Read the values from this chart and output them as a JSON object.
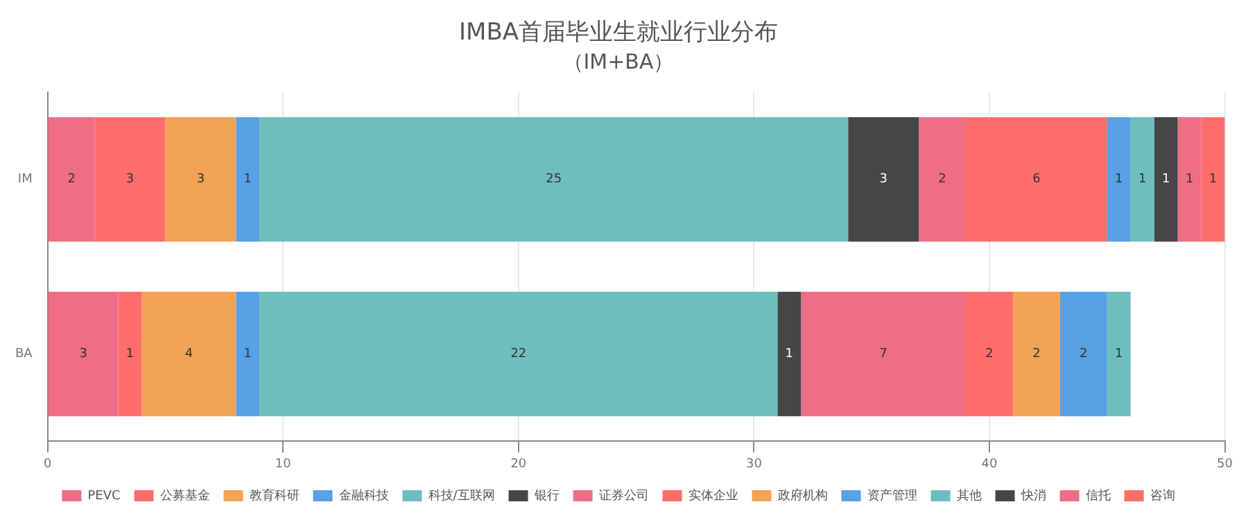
{
  "chart_data": {
    "type": "bar",
    "orientation": "horizontal",
    "stacked": true,
    "title": "IMBA首届毕业生就业行业分布",
    "subtitle": "（IM+BA）",
    "categories": [
      "IM",
      "BA"
    ],
    "series": [
      {
        "name": "PEVC",
        "color": "#ee6e85",
        "values": [
          2,
          3
        ]
      },
      {
        "name": "公募基金",
        "color": "#fd6e6a",
        "values": [
          3,
          1
        ]
      },
      {
        "name": "教育科研",
        "color": "#f2a355",
        "values": [
          3,
          4
        ]
      },
      {
        "name": "金融科技",
        "color": "#57a1e5",
        "values": [
          1,
          1
        ]
      },
      {
        "name": "科技/互联网",
        "color": "#6ebebd",
        "values": [
          25,
          22
        ]
      },
      {
        "name": "银行",
        "color": "#454648",
        "values": [
          3,
          1
        ]
      },
      {
        "name": "证券公司",
        "color": "#ee6e85",
        "values": [
          2,
          7
        ]
      },
      {
        "name": "实体企业",
        "color": "#fd6e6a",
        "values": [
          6,
          2
        ]
      },
      {
        "name": "政府机构",
        "color": "#f2a355",
        "values": [
          null,
          2
        ]
      },
      {
        "name": "资产管理",
        "color": "#57a1e5",
        "values": [
          1,
          2
        ]
      },
      {
        "name": "其他",
        "color": "#6ebebd",
        "values": [
          1,
          1
        ]
      },
      {
        "name": "快消",
        "color": "#454648",
        "values": [
          1,
          null
        ]
      },
      {
        "name": "信托",
        "color": "#ee6e85",
        "values": [
          1,
          null
        ]
      },
      {
        "name": "咨询",
        "color": "#fd6e6a",
        "values": [
          1,
          null
        ]
      }
    ],
    "xlim": [
      0,
      50
    ],
    "xticks": [
      0,
      10,
      20,
      30,
      40,
      50
    ],
    "grid": "x",
    "legend": "bottom",
    "data_labels": true
  }
}
